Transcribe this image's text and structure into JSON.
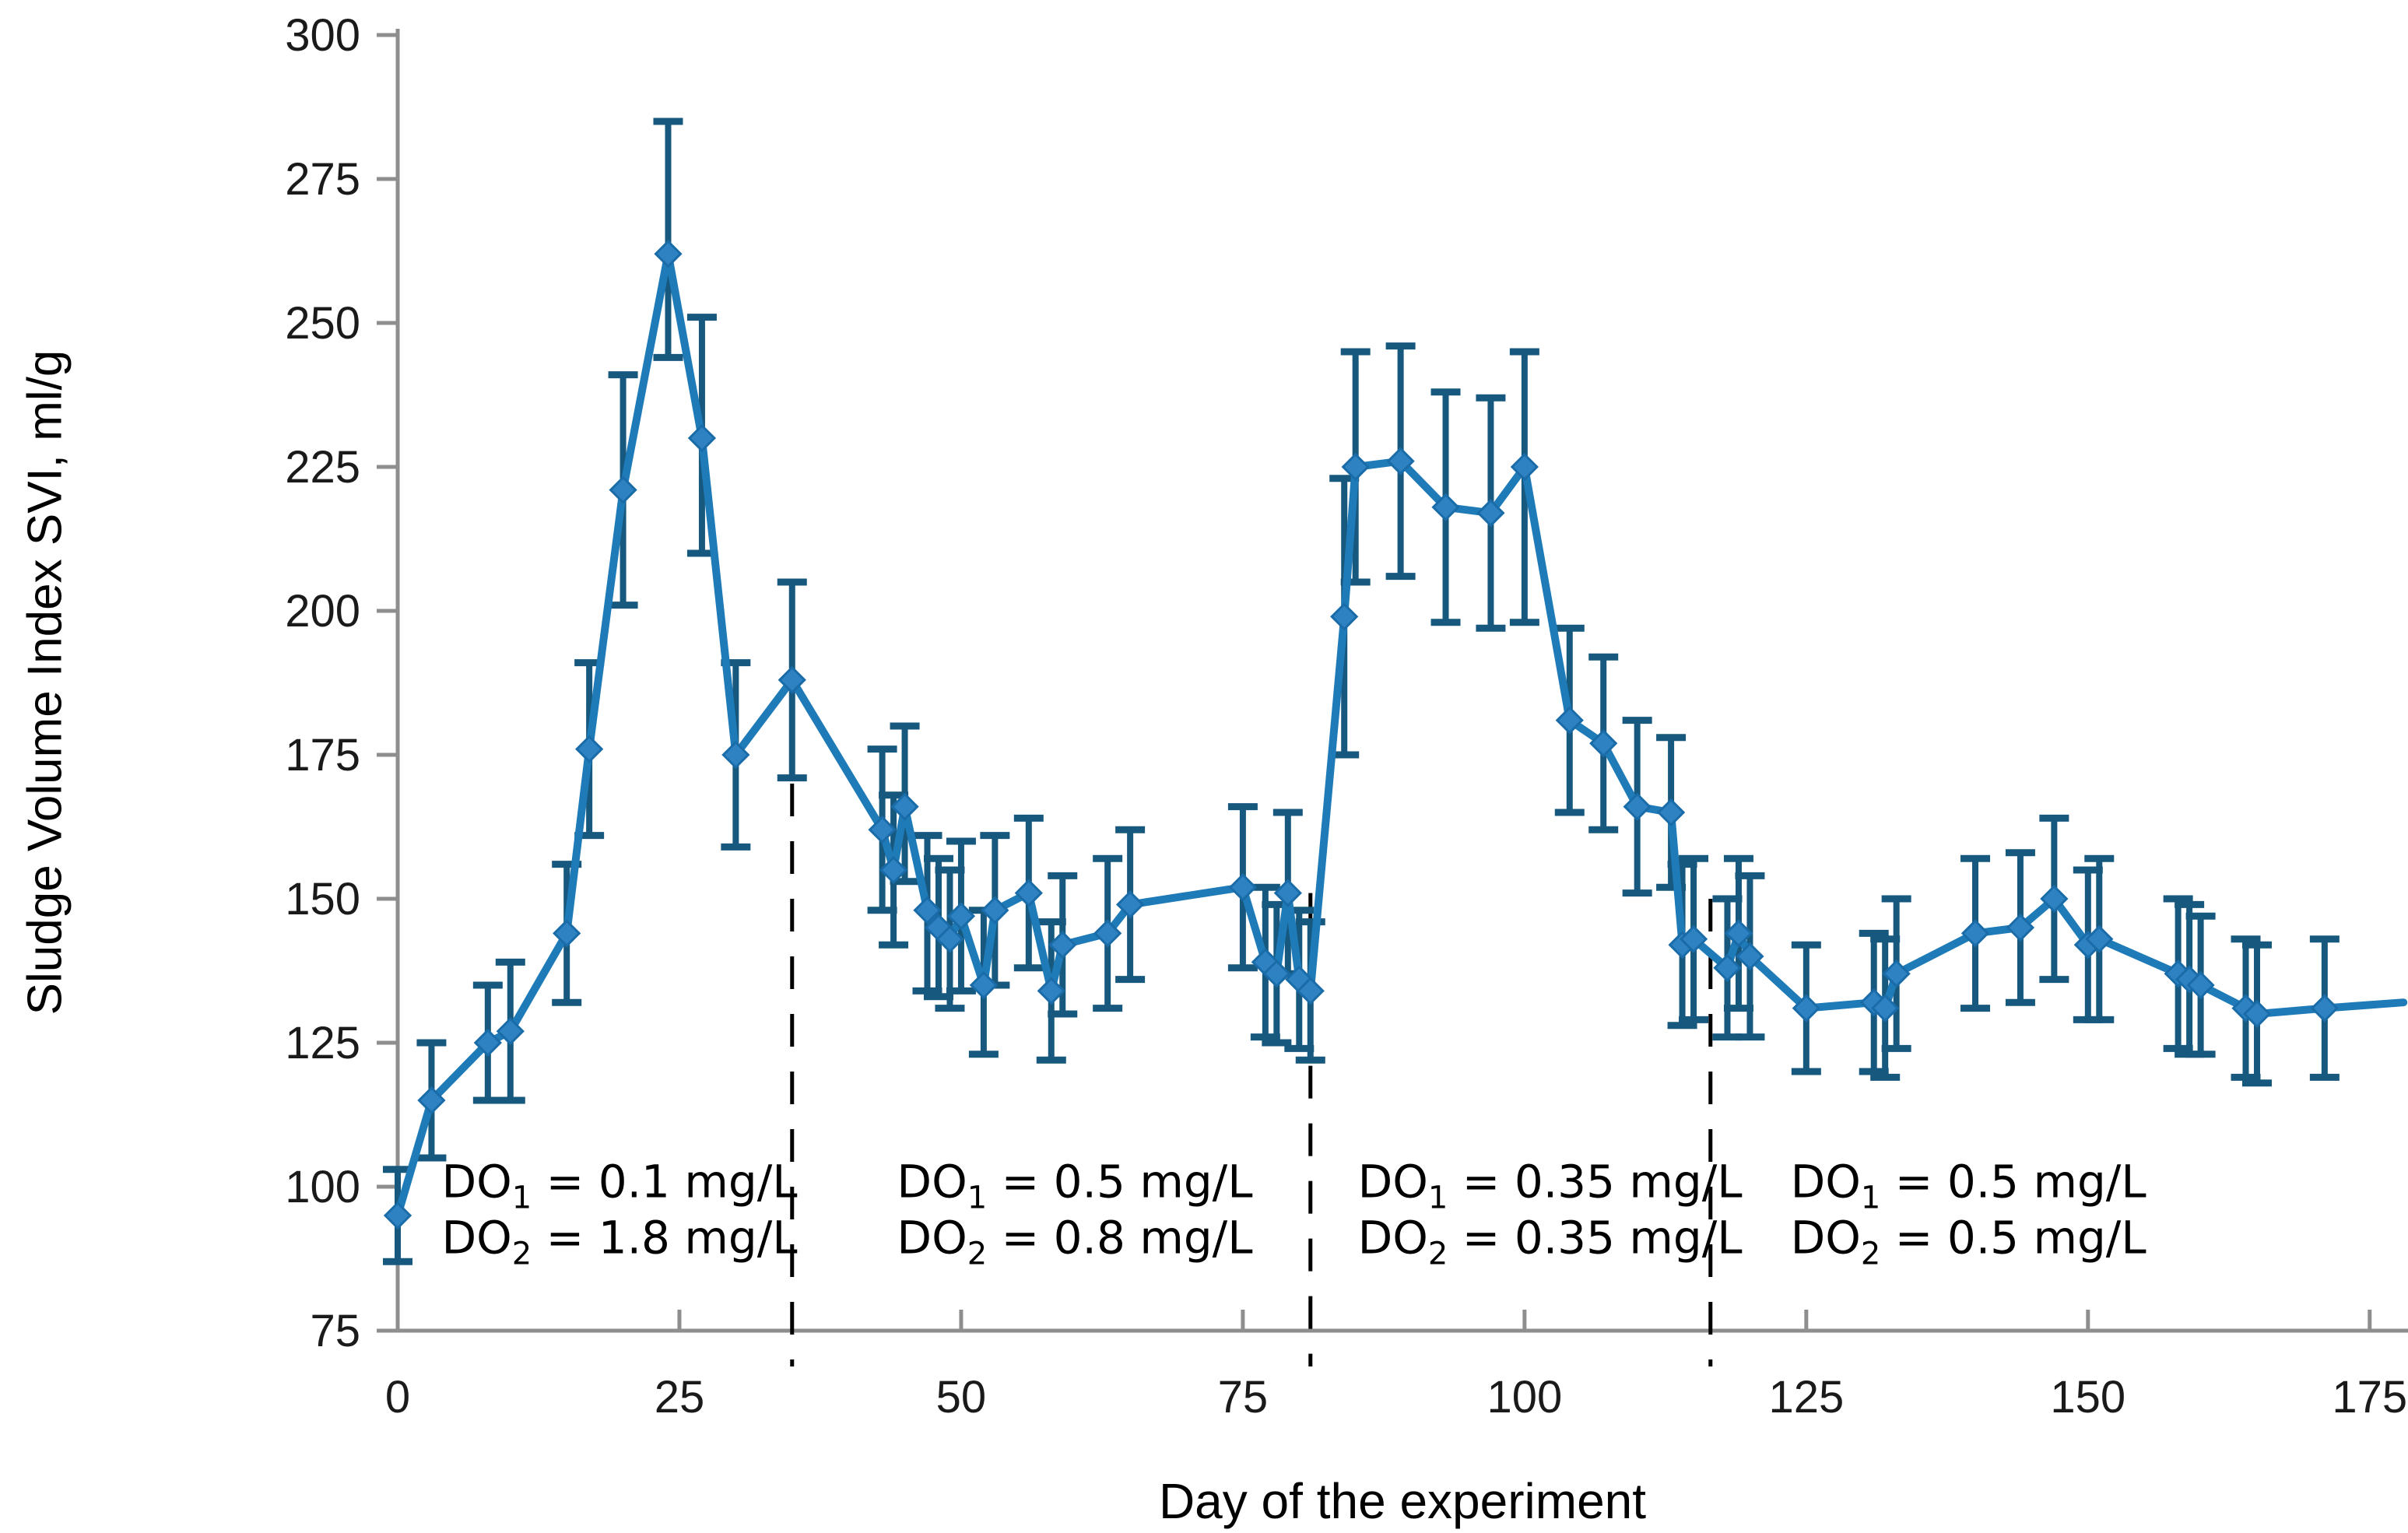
{
  "chart_data": {
    "type": "line",
    "title": "",
    "xlabel": "Day of the experiment",
    "ylabel": "Sludge Volume Index SVI, ml/g",
    "xlim": [
      0,
      178.4
    ],
    "ylim": [
      75,
      300
    ],
    "x_ticks": [
      0,
      25,
      50,
      75,
      100,
      125,
      150,
      175
    ],
    "y_ticks": [
      75,
      100,
      125,
      150,
      175,
      200,
      225,
      250,
      275,
      300
    ],
    "grid": false,
    "legend": false,
    "series": [
      {
        "name": "SVI",
        "marker": "diamond",
        "points": [
          [
            0,
            95,
            8,
            8
          ],
          [
            3,
            115,
            10,
            10
          ],
          [
            8,
            125,
            10,
            10
          ],
          [
            10,
            127,
            12,
            12
          ],
          [
            15,
            144,
            12,
            12
          ],
          [
            17,
            176,
            15,
            15
          ],
          [
            20,
            221,
            20,
            20
          ],
          [
            24,
            262,
            18,
            23
          ],
          [
            27,
            230,
            20,
            21
          ],
          [
            30,
            175,
            16,
            16
          ],
          [
            35,
            188,
            17,
            17
          ],
          [
            43,
            162,
            14,
            14
          ],
          [
            44,
            155,
            13,
            13
          ],
          [
            45,
            166,
            13,
            14
          ],
          [
            47,
            148,
            14,
            13
          ],
          [
            48,
            145,
            12,
            12
          ],
          [
            49,
            143,
            12,
            12
          ],
          [
            50,
            147,
            13,
            13
          ],
          [
            52,
            135,
            12,
            13
          ],
          [
            53,
            148,
            13,
            13
          ],
          [
            56,
            151,
            13,
            13
          ],
          [
            58,
            134,
            12,
            12
          ],
          [
            59,
            142,
            12,
            12
          ],
          [
            63,
            144,
            13,
            13
          ],
          [
            65,
            149,
            13,
            13
          ],
          [
            75,
            152,
            14,
            14
          ],
          [
            77,
            139,
            13,
            13
          ],
          [
            78,
            137,
            12,
            12
          ],
          [
            79,
            151,
            14,
            14
          ],
          [
            80,
            136,
            12,
            12
          ],
          [
            81,
            134,
            12,
            12
          ],
          [
            84,
            199,
            24,
            24
          ],
          [
            85,
            225,
            20,
            20
          ],
          [
            89,
            226,
            20,
            20
          ],
          [
            93,
            218,
            20,
            20
          ],
          [
            97,
            217,
            20,
            20
          ],
          [
            100,
            225,
            27,
            20
          ],
          [
            104,
            181,
            16,
            16
          ],
          [
            107,
            177,
            15,
            15
          ],
          [
            110,
            166,
            15,
            15
          ],
          [
            113,
            165,
            13,
            13
          ],
          [
            114,
            142,
            14,
            14
          ],
          [
            115,
            143,
            14,
            14
          ],
          [
            118,
            138,
            12,
            12
          ],
          [
            119,
            144,
            13,
            13
          ],
          [
            120,
            140,
            14,
            14
          ],
          [
            125,
            131,
            11,
            11
          ],
          [
            131,
            132,
            12,
            12
          ],
          [
            132,
            131,
            12,
            12
          ],
          [
            133,
            137,
            13,
            13
          ],
          [
            140,
            144,
            13,
            13
          ],
          [
            144,
            145,
            13,
            13
          ],
          [
            147,
            150,
            14,
            14
          ],
          [
            150,
            142,
            13,
            13
          ],
          [
            151,
            143,
            14,
            14
          ],
          [
            158,
            137,
            13,
            13
          ],
          [
            159,
            136,
            13,
            13
          ],
          [
            160,
            135,
            12,
            12
          ],
          [
            164,
            131,
            12,
            12
          ],
          [
            165,
            130,
            12,
            12
          ],
          [
            171,
            131,
            12,
            12
          ],
          [
            178,
            132,
            0,
            0,
            0
          ]
        ]
      }
    ],
    "phase_lines": [
      {
        "x": 35,
        "top": 190
      },
      {
        "x": 81,
        "top": 151
      },
      {
        "x": 116.5,
        "top": 150
      }
    ],
    "annotations": [
      {
        "x": 3.9,
        "y": 101,
        "lines": [
          {
            "base": "DO",
            "sub": "1",
            "rest": " = 0.1 mg/L"
          },
          {
            "base": "DO",
            "sub": "2",
            "rest": " = 1.8 mg/L"
          }
        ]
      },
      {
        "x": 44.3,
        "y": 101,
        "lines": [
          {
            "base": "DO",
            "sub": "1",
            "rest": " = 0.5 mg/L"
          },
          {
            "base": "DO",
            "sub": "2",
            "rest": " = 0.8 mg/L"
          }
        ]
      },
      {
        "x": 85.2,
        "y": 101,
        "lines": [
          {
            "base": "DO",
            "sub": "1",
            "rest": " = 0.35 mg/L"
          },
          {
            "base": "DO",
            "sub": "2",
            "rest": " = 0.35 mg/L"
          }
        ]
      },
      {
        "x": 123.6,
        "y": 101,
        "lines": [
          {
            "base": "DO",
            "sub": "1",
            "rest": " = 0.5 mg/L"
          },
          {
            "base": "DO",
            "sub": "2",
            "rest": " = 0.5 mg/L"
          }
        ]
      }
    ],
    "colors": {
      "line": "#1E7BB8",
      "marker_fill": "#2F82C2",
      "marker_stroke": "#1A6CA8",
      "error_bar": "#17587F",
      "axis": "#8E8E8E",
      "text": "#1A1A1A",
      "phase_line": "#000000"
    }
  }
}
